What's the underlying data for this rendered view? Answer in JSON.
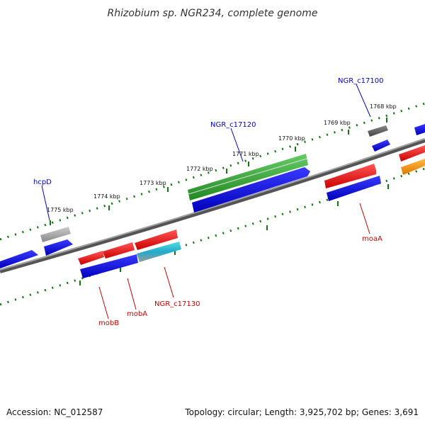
{
  "title": "Rhizobium sp. NGR234, complete genome",
  "footer": {
    "accession": "Accession: NC_012587",
    "summary": "Topology: circular; Length: 3,925,702 bp; Genes: 3,691"
  },
  "kbp_labels": [
    "1768 kbp",
    "1769 kbp",
    "1770 kbp",
    "1771 kbp",
    "1772 kbp",
    "1773 kbp",
    "1774 kbp",
    "1775 kbp"
  ],
  "gene_labels": {
    "ngr_c17100": "NGR_c17100",
    "ngr_c17120": "NGR_c17120",
    "hcpD": "hcpD",
    "mobB": "mobB",
    "mobA": "mobA",
    "ngr_c17130": "NGR_c17130",
    "moaA": "moaA"
  },
  "colors": {
    "blue": "#0000dd",
    "red": "#ee0000",
    "green": "#33aa33",
    "gray": "#999999",
    "dark_gray": "#666666",
    "cyan": "#22bbcc",
    "orange": "#ff9900",
    "label_blue": "#0000cc",
    "label_red": "#cc0000",
    "tick_green": "#117711"
  }
}
